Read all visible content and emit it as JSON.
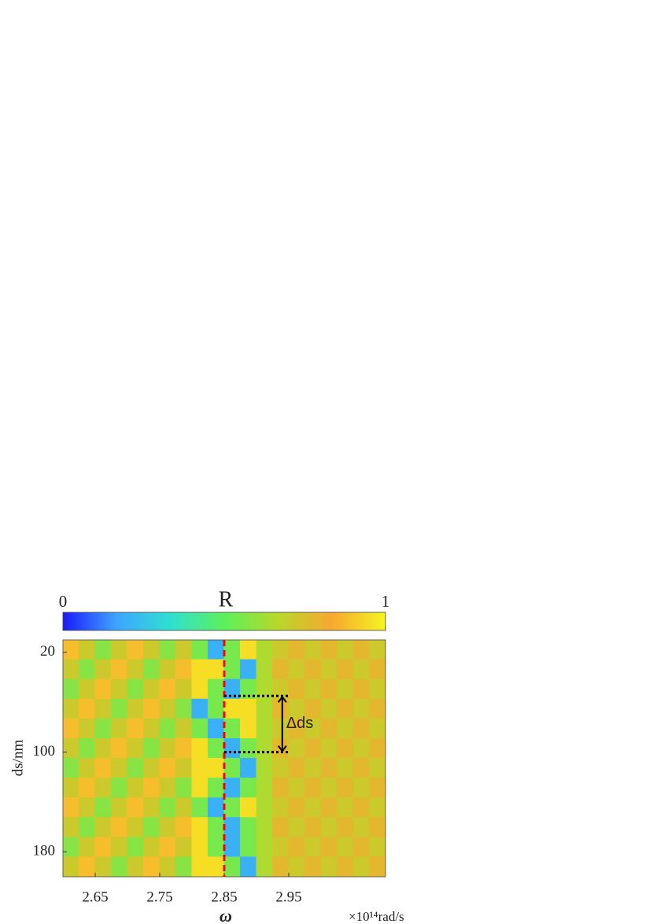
{
  "chart_data": {
    "type": "heatmap",
    "colorbar_label": "R",
    "clim": [
      0,
      1
    ],
    "cticks": [
      0,
      1
    ],
    "colormap": [
      "#1a1aff",
      "#3da5ff",
      "#2fe0d0",
      "#5cf05c",
      "#b8d82a",
      "#f7a830",
      "#f5f520"
    ],
    "xlabel": "ω",
    "xunit": "×10¹⁴rad/s",
    "ylabel": "ds/nm",
    "xlim": [
      2.6,
      3.1
    ],
    "ylim": [
      10,
      200
    ],
    "y_reversed": true,
    "xticks": [
      2.65,
      2.75,
      2.85,
      2.95
    ],
    "yticks": [
      20,
      100,
      180
    ],
    "x": [
      2.6125,
      2.6375,
      2.6625,
      2.6875,
      2.7125,
      2.7375,
      2.7625,
      2.7875,
      2.8125,
      2.8375,
      2.8625,
      2.8875,
      2.9125,
      2.9375,
      2.9625,
      2.9875,
      3.0125,
      3.0375,
      3.0625,
      3.0875
    ],
    "y": [
      17.9,
      33.8,
      49.6,
      65.4,
      81.3,
      97.1,
      112.9,
      128.8,
      144.6,
      160.4,
      176.3,
      192.1
    ],
    "z": [
      [
        0.88,
        0.72,
        0.58,
        0.72,
        0.88,
        0.72,
        0.58,
        0.72,
        0.55,
        0.2,
        0.55,
        0.95,
        0.65,
        0.72,
        0.78,
        0.72,
        0.78,
        0.72,
        0.78,
        0.72
      ],
      [
        0.72,
        0.58,
        0.72,
        0.88,
        0.72,
        0.58,
        0.72,
        0.88,
        0.95,
        0.95,
        0.55,
        0.2,
        0.65,
        0.78,
        0.72,
        0.78,
        0.72,
        0.78,
        0.72,
        0.78
      ],
      [
        0.58,
        0.72,
        0.88,
        0.72,
        0.58,
        0.72,
        0.88,
        0.72,
        0.95,
        0.55,
        0.2,
        0.55,
        0.65,
        0.72,
        0.78,
        0.72,
        0.78,
        0.72,
        0.78,
        0.72
      ],
      [
        0.72,
        0.88,
        0.72,
        0.58,
        0.72,
        0.88,
        0.72,
        0.58,
        0.2,
        0.55,
        0.95,
        0.95,
        0.65,
        0.78,
        0.72,
        0.78,
        0.72,
        0.78,
        0.72,
        0.78
      ],
      [
        0.88,
        0.72,
        0.58,
        0.72,
        0.88,
        0.72,
        0.58,
        0.72,
        0.55,
        0.2,
        0.55,
        0.95,
        0.65,
        0.72,
        0.78,
        0.72,
        0.78,
        0.72,
        0.78,
        0.72
      ],
      [
        0.72,
        0.58,
        0.72,
        0.88,
        0.72,
        0.58,
        0.72,
        0.88,
        0.95,
        0.55,
        0.2,
        0.55,
        0.65,
        0.78,
        0.72,
        0.78,
        0.72,
        0.78,
        0.72,
        0.78
      ],
      [
        0.58,
        0.72,
        0.88,
        0.72,
        0.58,
        0.72,
        0.88,
        0.72,
        0.95,
        0.95,
        0.55,
        0.2,
        0.65,
        0.72,
        0.78,
        0.72,
        0.78,
        0.72,
        0.78,
        0.72
      ],
      [
        0.72,
        0.88,
        0.72,
        0.58,
        0.72,
        0.88,
        0.72,
        0.58,
        0.95,
        0.55,
        0.2,
        0.55,
        0.65,
        0.78,
        0.72,
        0.78,
        0.72,
        0.78,
        0.72,
        0.78
      ],
      [
        0.88,
        0.72,
        0.58,
        0.72,
        0.88,
        0.72,
        0.58,
        0.72,
        0.55,
        0.2,
        0.55,
        0.95,
        0.65,
        0.72,
        0.78,
        0.72,
        0.78,
        0.72,
        0.78,
        0.72
      ],
      [
        0.72,
        0.58,
        0.72,
        0.88,
        0.72,
        0.58,
        0.72,
        0.88,
        0.95,
        0.55,
        0.2,
        0.55,
        0.65,
        0.78,
        0.72,
        0.78,
        0.72,
        0.78,
        0.72,
        0.78
      ],
      [
        0.58,
        0.72,
        0.88,
        0.72,
        0.58,
        0.72,
        0.88,
        0.72,
        0.95,
        0.55,
        0.2,
        0.55,
        0.65,
        0.72,
        0.78,
        0.72,
        0.78,
        0.72,
        0.78,
        0.72
      ],
      [
        0.72,
        0.88,
        0.72,
        0.58,
        0.72,
        0.88,
        0.72,
        0.58,
        0.95,
        0.95,
        0.55,
        0.2,
        0.65,
        0.78,
        0.72,
        0.78,
        0.72,
        0.78,
        0.72,
        0.78
      ]
    ],
    "reference_line": {
      "x": 2.85,
      "color": "#ff0000"
    },
    "span": {
      "y": [
        55,
        100
      ],
      "x": [
        2.85,
        2.95
      ],
      "arrow_x": 2.94,
      "label": "Δds"
    }
  }
}
